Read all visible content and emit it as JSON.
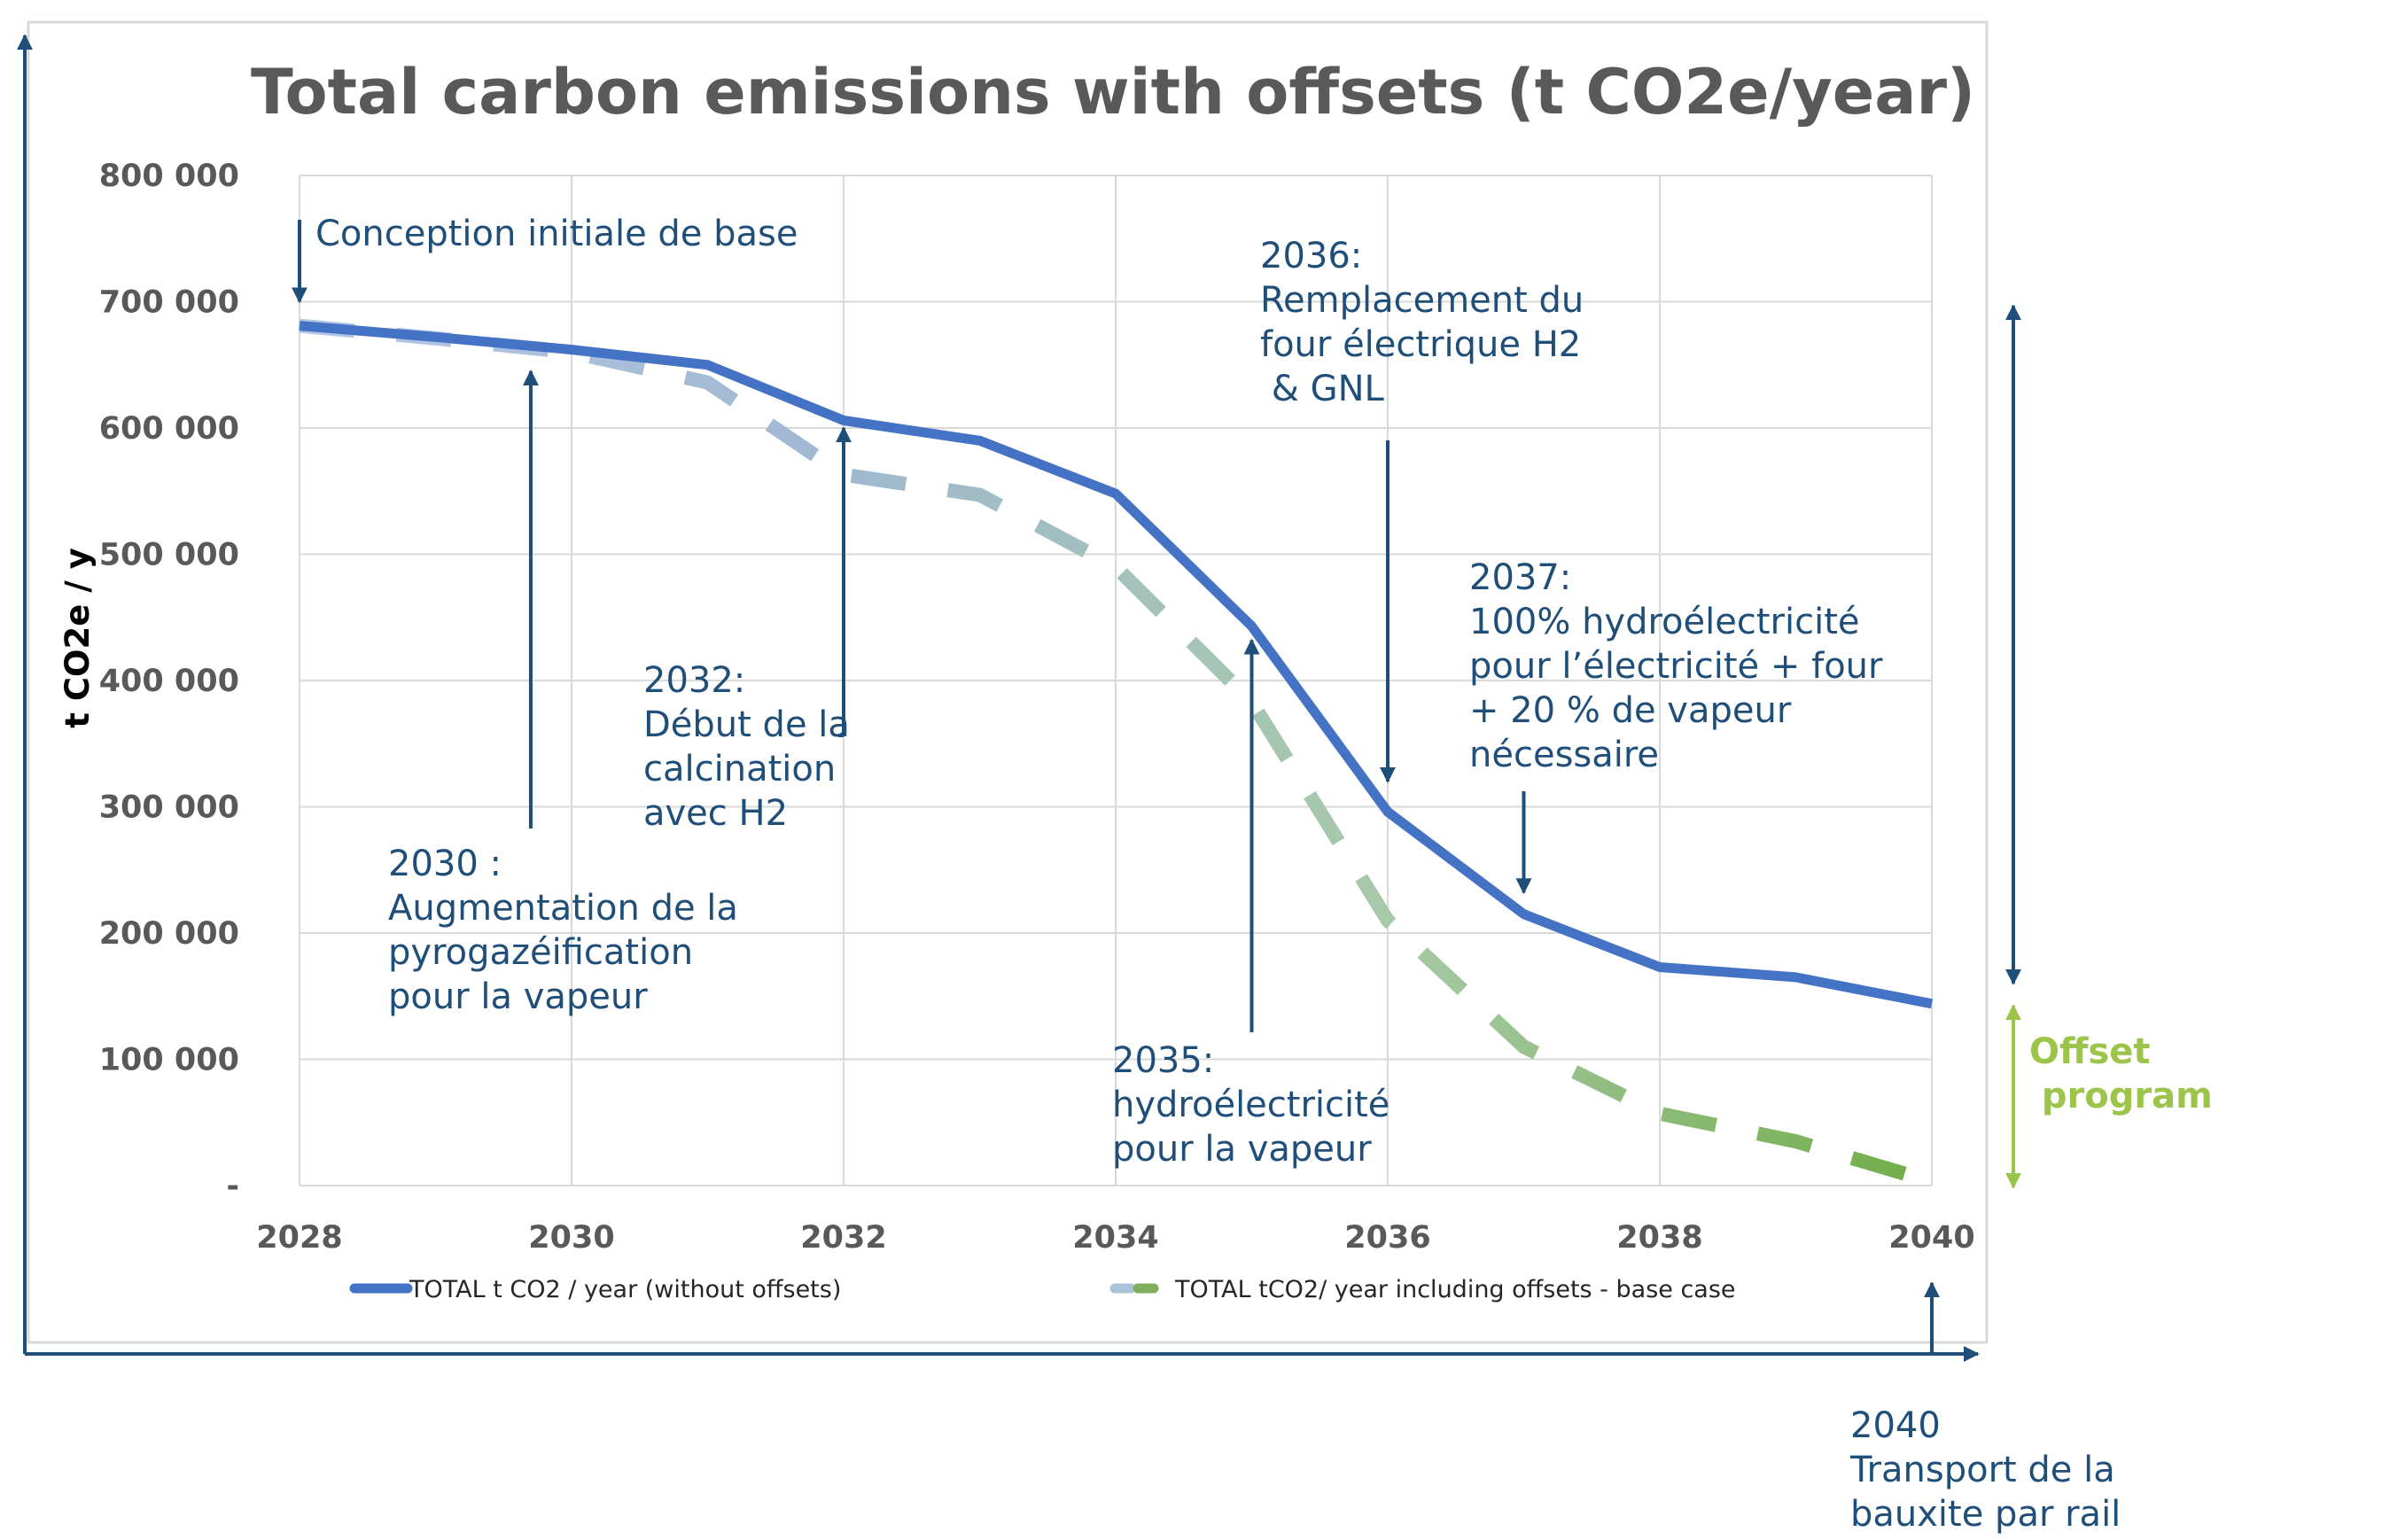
{
  "chart_data": {
    "type": "line",
    "title": "Total carbon emissions with offsets (t CO2e/year)",
    "xlabel": "",
    "ylabel": "t CO2e / y",
    "x": [
      2028,
      2029,
      2030,
      2031,
      2032,
      2033,
      2034,
      2035,
      2036,
      2037,
      2038,
      2039,
      2040
    ],
    "xlim": [
      2028,
      2040
    ],
    "ylim": [
      0,
      800000
    ],
    "x_ticks": [
      "2028",
      "2030",
      "2032",
      "2034",
      "2036",
      "2038",
      "2040"
    ],
    "y_ticks": [
      "-",
      "100 000",
      "200 000",
      "300 000",
      "400 000",
      "500 000",
      "600 000",
      "700 000",
      "800 000"
    ],
    "grid": true,
    "legend_position": "bottom",
    "series": [
      {
        "name": "TOTAL t CO2 / year (without offsets)",
        "style": "solid",
        "color": "#4472C4",
        "values": [
          681000,
          672000,
          662000,
          650000,
          606000,
          590000,
          548000,
          443000,
          296000,
          215000,
          173000,
          165000,
          144000
        ]
      },
      {
        "name": "TOTAL tCO2/ year including offsets - base case",
        "style": "dashed",
        "colors": [
          "#B4C7E7",
          "#9FB8D0",
          "#A8C9A8",
          "#70AD47"
        ],
        "values": [
          681000,
          671000,
          660000,
          636000,
          563000,
          547000,
          490000,
          383000,
          210000,
          110000,
          57000,
          35000,
          3000
        ]
      }
    ],
    "annotations": [
      {
        "name": "base",
        "x": 2028,
        "y": 700000,
        "lines": [
          "Conception initiale de base"
        ]
      },
      {
        "name": "2030",
        "x": 2029.7,
        "y": 645000,
        "lines": [
          "2030 :",
          "Augmentation de la",
          "pyrogazéification",
          "pour la vapeur"
        ]
      },
      {
        "name": "2032",
        "x": 2032,
        "y": 600000,
        "lines": [
          "2032:",
          "Début de la",
          "calcination",
          "avec H2"
        ]
      },
      {
        "name": "2035",
        "x": 2035,
        "y": 432000,
        "lines": [
          "2035:",
          "hydroélectricité",
          "pour la vapeur"
        ]
      },
      {
        "name": "2036",
        "x": 2036,
        "y": 320000,
        "lines": [
          "2036:",
          "Remplacement du",
          "four électrique H2",
          " & GNL"
        ]
      },
      {
        "name": "2037",
        "x": 2037,
        "y": 232000,
        "lines": [
          "2037:",
          "100% hydroélectricité",
          "pour l’électricité + four",
          "+ 20 % de vapeur",
          "nécessaire"
        ]
      },
      {
        "name": "2040",
        "x": 2040,
        "y": 0,
        "lines": [
          "2040",
          "Transport de la",
          "bauxite par rail"
        ]
      }
    ],
    "offset_program": {
      "lines": [
        "Offset",
        " program"
      ],
      "color": "#9DC44A"
    }
  }
}
